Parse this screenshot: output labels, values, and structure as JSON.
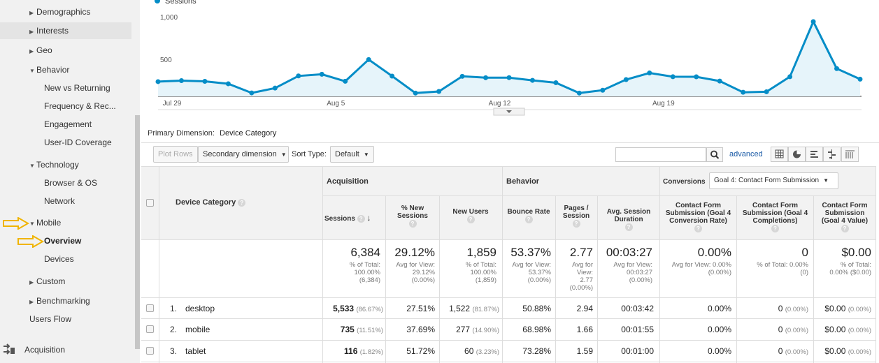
{
  "sidebar": {
    "items": [
      {
        "label": "Demographics",
        "expand": "▶"
      },
      {
        "label": "Interests",
        "expand": "▶"
      },
      {
        "label": "Geo",
        "expand": "▶"
      },
      {
        "label": "Behavior",
        "expand": "▼"
      },
      {
        "label": "New vs Returning"
      },
      {
        "label": "Frequency & Rec..."
      },
      {
        "label": "Engagement"
      },
      {
        "label": "User-ID Coverage"
      },
      {
        "label": "Technology",
        "expand": "▼"
      },
      {
        "label": "Browser & OS"
      },
      {
        "label": "Network"
      },
      {
        "label": "Mobile",
        "expand": "▼"
      },
      {
        "label": "Overview"
      },
      {
        "label": "Devices"
      },
      {
        "label": "Custom",
        "expand": "▶"
      },
      {
        "label": "Benchmarking",
        "expand": "▶"
      },
      {
        "label": "Users Flow"
      },
      {
        "label": "Acquisition"
      }
    ]
  },
  "chart": {
    "legend": "Sessions",
    "color": "#058dc7",
    "fill": "#e6f4fa",
    "y_ticks": [
      "1,000",
      "500"
    ],
    "x_ticks": [
      "Jul 29",
      "Aug 5",
      "Aug 12",
      "Aug 19"
    ]
  },
  "chart_data": {
    "type": "line",
    "title": "",
    "xlabel": "",
    "ylabel": "",
    "ylim": [
      0,
      1000
    ],
    "series": [
      {
        "name": "Sessions",
        "values": [
          180,
          192,
          184,
          154,
          42,
          101,
          250,
          270,
          185,
          450,
          248,
          40,
          60,
          245,
          228,
          229,
          196,
          167,
          40,
          75,
          205,
          286,
          240,
          239,
          187,
          50,
          56,
          240,
          915,
          340,
          210
        ]
      }
    ],
    "x_tick_labels": [
      "Jul 29",
      "Aug 5",
      "Aug 12",
      "Aug 19"
    ]
  },
  "primary_dimension": {
    "label": "Primary Dimension:",
    "value": "Device Category"
  },
  "toolbar": {
    "plot_rows": "Plot Rows",
    "secondary_dimension": "Secondary dimension",
    "sort_type_label": "Sort Type:",
    "sort_type_value": "Default",
    "advanced": "advanced",
    "search_placeholder": ""
  },
  "table": {
    "dimension_header": "Device Category",
    "groups": {
      "acquisition": "Acquisition",
      "behavior": "Behavior",
      "conversions": "Conversions"
    },
    "goal_select": "Goal 4: Contact Form Submission",
    "columns": {
      "sessions": "Sessions",
      "pct_new": "% New Sessions",
      "new_users": "New Users",
      "bounce": "Bounce Rate",
      "pages": "Pages / Session",
      "duration": "Avg. Session Duration",
      "conv_rate": "Contact Form Submission (Goal 4 Conversion Rate)",
      "completions": "Contact Form Submission (Goal 4 Completions)",
      "value": "Contact Form Submission (Goal 4 Value)"
    },
    "totals": {
      "sessions": "6,384",
      "sessions_sub1": "% of Total:",
      "sessions_sub2": "100.00%",
      "sessions_sub3": "(6,384)",
      "pct_new": "29.12%",
      "pct_new_sub1": "Avg for View:",
      "pct_new_sub2": "29.12%",
      "pct_new_sub3": "(0.00%)",
      "new_users": "1,859",
      "new_users_sub1": "% of Total:",
      "new_users_sub2": "100.00%",
      "new_users_sub3": "(1,859)",
      "bounce": "53.37%",
      "bounce_sub1": "Avg for View:",
      "bounce_sub2": "53.37%",
      "bounce_sub3": "(0.00%)",
      "pages": "2.77",
      "pages_sub1": "Avg for",
      "pages_sub2": "View:",
      "pages_sub3": "2.77",
      "pages_sub4": "(0.00%)",
      "duration": "00:03:27",
      "duration_sub1": "Avg for View:",
      "duration_sub2": "00:03:27",
      "duration_sub3": "(0.00%)",
      "conv_rate": "0.00%",
      "conv_rate_sub1": "Avg for View: 0.00%",
      "conv_rate_sub2": "(0.00%)",
      "completions": "0",
      "completions_sub1": "% of Total: 0.00%",
      "completions_sub2": "(0)",
      "value": "$0.00",
      "value_sub1": "% of Total:",
      "value_sub2": "0.00% ($0.00)"
    },
    "rows": [
      {
        "idx": "1.",
        "name": "desktop",
        "sessions": "5,533",
        "sessions_pct": "(86.67%)",
        "pct_new": "27.51%",
        "new_users": "1,522",
        "new_users_pct": "(81.87%)",
        "bounce": "50.88%",
        "pages": "2.94",
        "duration": "00:03:42",
        "conv_rate": "0.00%",
        "completions": "0",
        "completions_pct": "(0.00%)",
        "value": "$0.00",
        "value_pct": "(0.00%)"
      },
      {
        "idx": "2.",
        "name": "mobile",
        "sessions": "735",
        "sessions_pct": "(11.51%)",
        "pct_new": "37.69%",
        "new_users": "277",
        "new_users_pct": "(14.90%)",
        "bounce": "68.98%",
        "pages": "1.66",
        "duration": "00:01:55",
        "conv_rate": "0.00%",
        "completions": "0",
        "completions_pct": "(0.00%)",
        "value": "$0.00",
        "value_pct": "(0.00%)"
      },
      {
        "idx": "3.",
        "name": "tablet",
        "sessions": "116",
        "sessions_pct": "(1.82%)",
        "pct_new": "51.72%",
        "new_users": "60",
        "new_users_pct": "(3.23%)",
        "bounce": "73.28%",
        "pages": "1.59",
        "duration": "00:01:00",
        "conv_rate": "0.00%",
        "completions": "0",
        "completions_pct": "(0.00%)",
        "value": "$0.00",
        "value_pct": "(0.00%)"
      }
    ]
  }
}
